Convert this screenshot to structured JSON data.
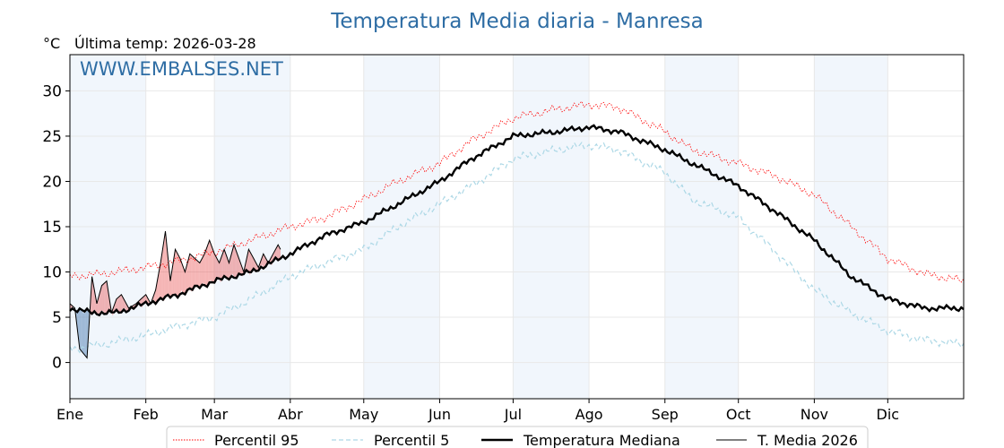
{
  "chart_data": {
    "type": "line",
    "title": "Temperatura Media diaria - Manresa",
    "unit_label": "°C",
    "last_temp_label": "Última temp: 2026-03-28",
    "watermark": "WWW.EMBALSES.NET",
    "ylim": [
      -4,
      34
    ],
    "yticks": [
      0,
      5,
      10,
      15,
      20,
      25,
      30
    ],
    "xlim_days": [
      1,
      366
    ],
    "months": [
      {
        "label": "Ene",
        "day": 1
      },
      {
        "label": "Feb",
        "day": 32
      },
      {
        "label": "Mar",
        "day": 60
      },
      {
        "label": "Abr",
        "day": 91
      },
      {
        "label": "May",
        "day": 121
      },
      {
        "label": "Jun",
        "day": 152
      },
      {
        "label": "Jul",
        "day": 182
      },
      {
        "label": "Ago",
        "day": 213
      },
      {
        "label": "Sep",
        "day": 244
      },
      {
        "label": "Oct",
        "day": 274
      },
      {
        "label": "Nov",
        "day": 305
      },
      {
        "label": "Dic",
        "day": 335
      }
    ],
    "shaded_months": [
      "Ene",
      "Mar",
      "May",
      "Jul",
      "Sep",
      "Nov"
    ],
    "series_anchors": {
      "p95": {
        "name": "Percentil 95",
        "color": "#ff0000",
        "style": "dotted",
        "day": [
          1,
          15,
          32,
          45,
          60,
          75,
          91,
          105,
          121,
          135,
          152,
          165,
          182,
          200,
          213,
          225,
          244,
          255,
          274,
          290,
          305,
          320,
          335,
          350,
          366
        ],
        "value": [
          9.5,
          9.8,
          10.5,
          11.2,
          12.2,
          13.5,
          15.0,
          16.0,
          18.0,
          20.0,
          22.0,
          24.5,
          27.0,
          28.0,
          28.5,
          28.2,
          25.5,
          23.5,
          22.0,
          20.5,
          18.5,
          15.0,
          11.5,
          9.8,
          9.0
        ]
      },
      "p5": {
        "name": "Percentil 5",
        "color": "#add8e6",
        "style": "dashed",
        "day": [
          1,
          15,
          32,
          45,
          60,
          75,
          91,
          105,
          121,
          135,
          152,
          165,
          182,
          200,
          213,
          225,
          244,
          255,
          274,
          290,
          305,
          320,
          335,
          350,
          366
        ],
        "value": [
          1.5,
          2.0,
          3.0,
          4.0,
          5.0,
          7.0,
          9.5,
          11.0,
          12.5,
          15.0,
          17.5,
          19.5,
          22.5,
          23.5,
          24.0,
          23.5,
          21.0,
          18.0,
          16.0,
          12.0,
          8.0,
          5.5,
          3.5,
          2.5,
          2.0
        ]
      },
      "median": {
        "name": "Temperatura Mediana",
        "color": "#000000",
        "style": "solid",
        "day": [
          1,
          10,
          20,
          32,
          45,
          60,
          75,
          91,
          105,
          121,
          135,
          152,
          165,
          182,
          200,
          213,
          225,
          244,
          255,
          274,
          290,
          305,
          320,
          335,
          350,
          366
        ],
        "value": [
          6.0,
          5.5,
          5.5,
          6.5,
          7.5,
          9.0,
          10.0,
          12.0,
          14.0,
          15.5,
          17.5,
          20.0,
          22.5,
          25.0,
          25.5,
          26.0,
          25.5,
          23.5,
          22.0,
          19.5,
          16.5,
          13.5,
          9.5,
          7.0,
          6.0,
          6.0
        ]
      }
    },
    "current_year_series": {
      "name": "T. Media 2026",
      "color": "#000000",
      "day": [
        1,
        3,
        5,
        8,
        10,
        12,
        14,
        16,
        18,
        20,
        22,
        25,
        28,
        30,
        32,
        34,
        36,
        38,
        40,
        42,
        44,
        46,
        48,
        50,
        52,
        54,
        56,
        58,
        60,
        62,
        64,
        66,
        68,
        70,
        72,
        74,
        76,
        78,
        80,
        82,
        84,
        86,
        87
      ],
      "value": [
        6.5,
        6.0,
        1.5,
        0.5,
        9.5,
        6.5,
        8.5,
        9.0,
        5.5,
        7.0,
        7.5,
        6.0,
        6.5,
        7.0,
        7.5,
        6.5,
        8.0,
        11.0,
        14.5,
        9.0,
        12.5,
        11.5,
        10.0,
        12.0,
        11.5,
        11.0,
        12.0,
        13.5,
        12.0,
        11.0,
        12.5,
        11.0,
        13.0,
        11.5,
        10.0,
        12.5,
        11.5,
        10.5,
        12.0,
        11.0,
        12.0,
        13.0,
        12.5
      ]
    },
    "legend": [
      {
        "label": "Percentil 95",
        "color": "#ff0000",
        "style": "dotted"
      },
      {
        "label": "Percentil 5",
        "color": "#add8e6",
        "style": "dashed"
      },
      {
        "label": "Temperatura Mediana",
        "color": "#000000",
        "style": "thick"
      },
      {
        "label": "T. Media 2026",
        "color": "#000000",
        "style": "thin"
      }
    ],
    "fill_colors": {
      "above_median": "#e85a5a",
      "below_median": "#3a6fa8"
    }
  }
}
